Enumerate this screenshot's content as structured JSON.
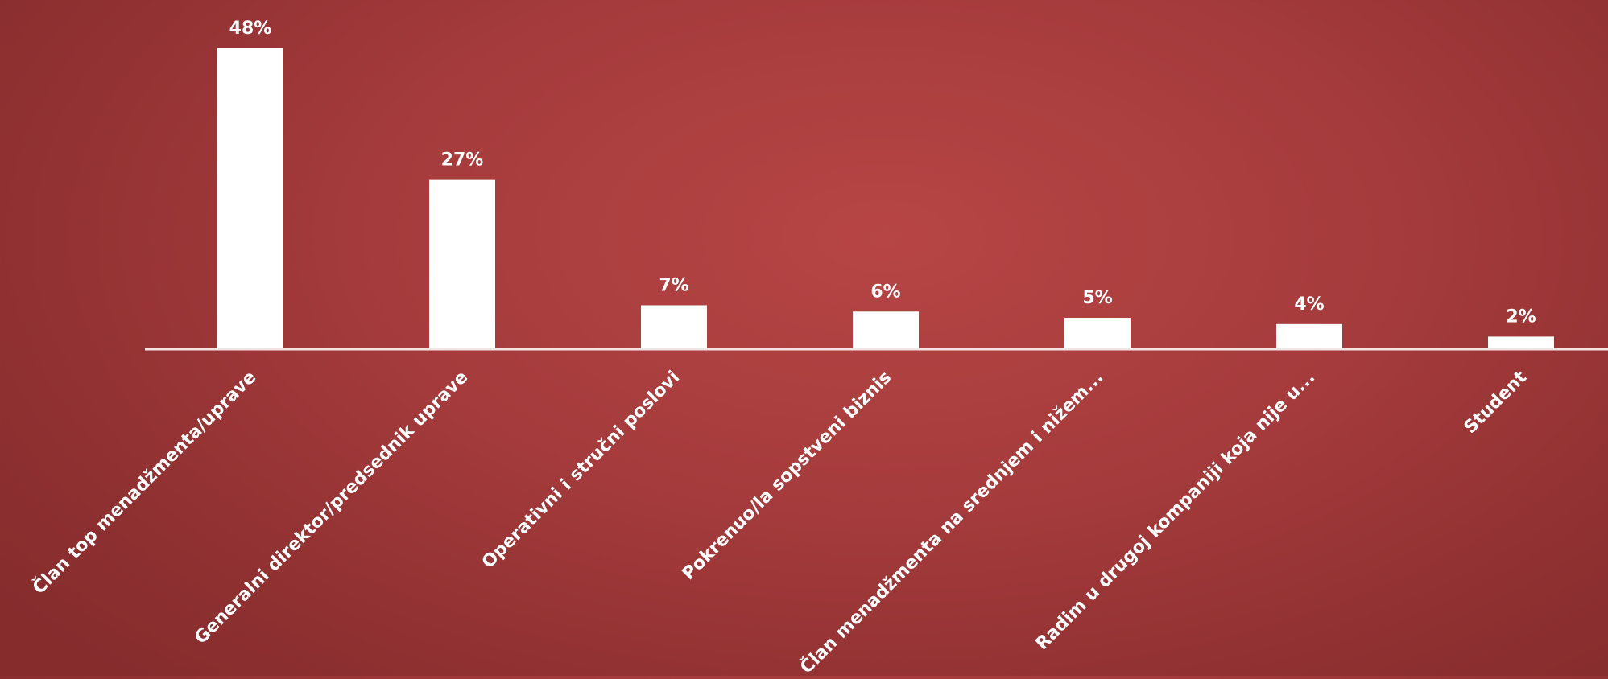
{
  "chart_data": {
    "type": "bar",
    "title": "",
    "xlabel": "",
    "ylabel": "",
    "ylim": [
      0,
      48
    ],
    "grid": false,
    "legend": "none",
    "categories": [
      "Član top menadžmenta/uprave",
      "Generalni direktor/predsednik uprave",
      "Operativni i stručni poslovi",
      "Pokrenuo/la sopstveni biznis",
      "Član menadžmenta na srednjem i nižem...",
      "Radim u drugoj kompaniji koja nije u...",
      "Student"
    ],
    "values": [
      48,
      27,
      7,
      6,
      5,
      4,
      2
    ],
    "data_labels": [
      "48%",
      "27%",
      "7%",
      "6%",
      "5%",
      "4%",
      "2%"
    ],
    "colors": {
      "bar": "#ffffff",
      "axis": "#f3e3e3",
      "label": "#ffffff"
    }
  }
}
